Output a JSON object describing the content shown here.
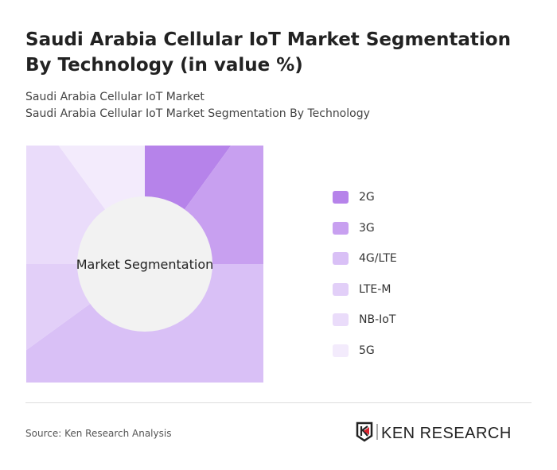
{
  "title": "Saudi Arabia Cellular IoT Market Segmentation By Technology (in value %)",
  "subtitle1": "Saudi Arabia Cellular IoT Market",
  "subtitle2": "Saudi Arabia Cellular IoT Market Segmentation By Technology",
  "source": "Source: Ken Research Analysis",
  "logo_text": "KEN RESEARCH",
  "chart_data": {
    "type": "pie",
    "center_label": "Market Segmentation",
    "legend_position": "right",
    "categories": [
      "2G",
      "3G",
      "4G/LTE",
      "LTE-M",
      "NB-IoT",
      "5G"
    ],
    "values": [
      10,
      15,
      40,
      10,
      15,
      10
    ],
    "colors": [
      "#b683ea",
      "#c8a0f0",
      "#d9c0f6",
      "#e2cff8",
      "#eadcfa",
      "#f3ebfc"
    ]
  }
}
